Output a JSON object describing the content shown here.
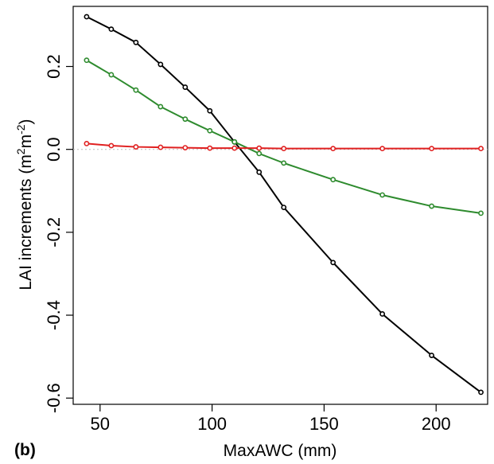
{
  "panel_label": "(b)",
  "chart_data": {
    "type": "line",
    "title": "",
    "xlabel": "MaxAWC (mm)",
    "ylabel": {
      "text": "LAI increments  (m",
      "sup1": "2",
      "mid": "m",
      "sup2": "-2",
      "end": ")"
    },
    "xlim": [
      38,
      223
    ],
    "ylim": [
      -0.615,
      0.345
    ],
    "x_ticks": [
      50,
      100,
      150,
      200
    ],
    "x_tick_labels": [
      "50",
      "100",
      "150",
      "200"
    ],
    "y_ticks": [
      -0.6,
      -0.4,
      -0.2,
      0.0,
      0.2
    ],
    "y_tick_labels": [
      "-0.6",
      "-0.4",
      "-0.2",
      "0.0",
      "0.2"
    ],
    "reference_line": {
      "y": 0.0,
      "color": "#bbbbbb",
      "style": "dotted"
    },
    "grid": false,
    "legend": "none",
    "x": [
      44,
      55,
      66,
      77,
      88,
      99,
      110,
      121,
      132,
      154,
      176,
      198,
      220
    ],
    "series": [
      {
        "color": "#000000",
        "values": [
          0.32,
          0.29,
          0.258,
          0.205,
          0.15,
          0.093,
          0.018,
          -0.055,
          -0.14,
          -0.273,
          -0.397,
          -0.497,
          -0.586
        ]
      },
      {
        "color": "#2e8b2e",
        "values": [
          0.215,
          0.18,
          0.143,
          0.103,
          0.073,
          0.045,
          0.018,
          -0.01,
          -0.033,
          -0.073,
          -0.11,
          -0.137,
          -0.154
        ]
      },
      {
        "color": "#e02020",
        "values": [
          0.014,
          0.009,
          0.006,
          0.005,
          0.004,
          0.003,
          0.003,
          0.003,
          0.002,
          0.002,
          0.002,
          0.002,
          0.002
        ]
      }
    ]
  }
}
